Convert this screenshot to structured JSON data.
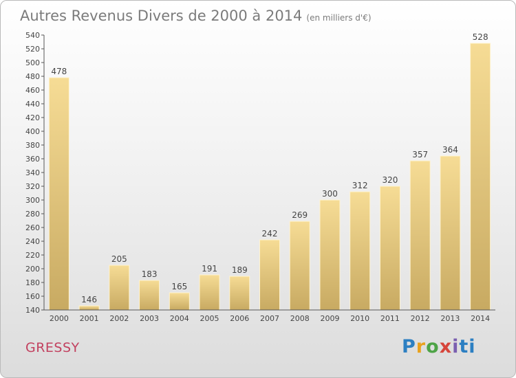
{
  "chart_data": {
    "type": "bar",
    "title": "Autres Revenus Divers de 2000 à 2014",
    "subtitle": "(en milliers d'€)",
    "categories": [
      "2000",
      "2001",
      "2002",
      "2003",
      "2004",
      "2005",
      "2006",
      "2007",
      "2008",
      "2009",
      "2010",
      "2011",
      "2012",
      "2013",
      "2014"
    ],
    "values": [
      478,
      146,
      205,
      183,
      165,
      191,
      189,
      242,
      269,
      300,
      312,
      320,
      357,
      364,
      528
    ],
    "xlabel": "",
    "ylabel": "",
    "ylim": [
      140,
      540
    ],
    "yticks": [
      140,
      160,
      180,
      200,
      220,
      240,
      260,
      280,
      300,
      320,
      340,
      360,
      380,
      400,
      420,
      440,
      460,
      480,
      500,
      520,
      540
    ],
    "grid": false,
    "legend": "none",
    "bar_color": "#e9cf86"
  },
  "footer": {
    "commune": "GRESSY",
    "brand": [
      "P",
      "r",
      "o",
      "x",
      "i",
      "ti"
    ]
  }
}
